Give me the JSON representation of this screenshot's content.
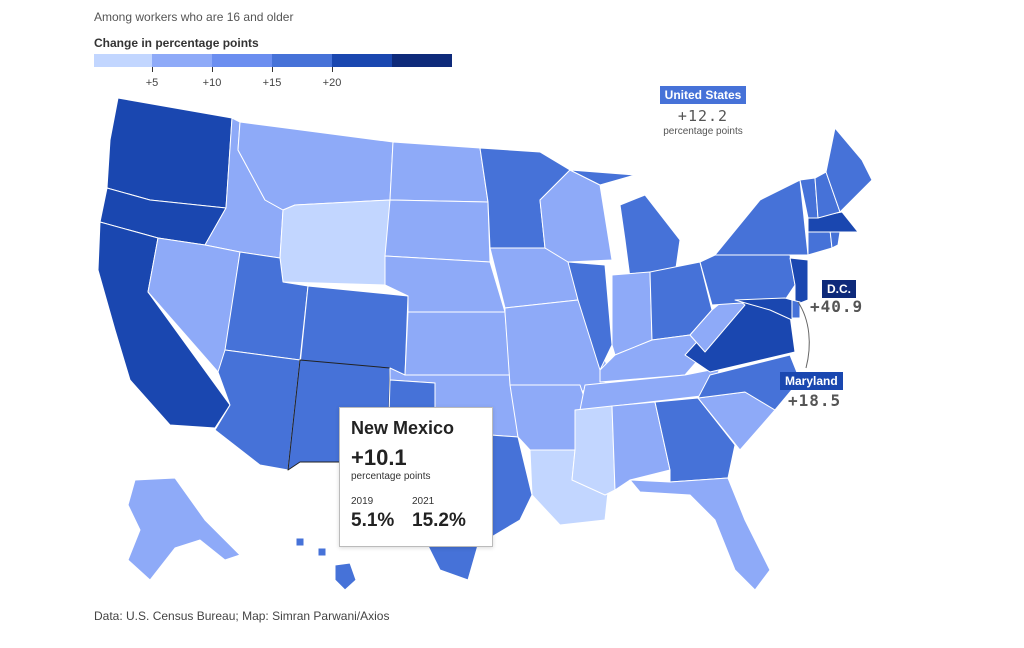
{
  "subtitle": "Among workers who are 16 and older",
  "legend": {
    "title": "Change in percentage points",
    "colors": [
      "#c2d6ff",
      "#8eaaf8",
      "#6b8ef0",
      "#4672d8",
      "#1a47b0",
      "#0e2a7a"
    ],
    "ticks": [
      "+5",
      "+10",
      "+15",
      "+20"
    ]
  },
  "national": {
    "label": "United States",
    "value": "+12.2",
    "unit": "percentage points"
  },
  "callouts": {
    "dc": {
      "label": "D.C.",
      "value": "+40.9"
    },
    "maryland": {
      "label": "Maryland",
      "value": "+18.5"
    }
  },
  "tooltip": {
    "state": "New Mexico",
    "change": "+10.1",
    "unit": "percentage points",
    "year1": "2019",
    "value1": "5.1%",
    "year2": "2021",
    "value2": "15.2%"
  },
  "states": [
    {
      "name": "Washington",
      "color": "#1a47b0"
    },
    {
      "name": "Oregon",
      "color": "#1a47b0"
    },
    {
      "name": "California",
      "color": "#1a47b0"
    },
    {
      "name": "Idaho",
      "color": "#8eaaf8"
    },
    {
      "name": "Nevada",
      "color": "#8eaaf8"
    },
    {
      "name": "Montana",
      "color": "#8eaaf8"
    },
    {
      "name": "Wyoming",
      "color": "#c2d6ff"
    },
    {
      "name": "Utah",
      "color": "#4672d8"
    },
    {
      "name": "Colorado",
      "color": "#4672d8"
    },
    {
      "name": "Arizona",
      "color": "#4672d8"
    },
    {
      "name": "New Mexico",
      "color": "#4672d8"
    },
    {
      "name": "North Dakota",
      "color": "#8eaaf8"
    },
    {
      "name": "South Dakota",
      "color": "#8eaaf8"
    },
    {
      "name": "Nebraska",
      "color": "#8eaaf8"
    },
    {
      "name": "Kansas",
      "color": "#8eaaf8"
    },
    {
      "name": "Oklahoma",
      "color": "#8eaaf8"
    },
    {
      "name": "Texas",
      "color": "#4672d8"
    },
    {
      "name": "Minnesota",
      "color": "#4672d8"
    },
    {
      "name": "Iowa",
      "color": "#8eaaf8"
    },
    {
      "name": "Missouri",
      "color": "#8eaaf8"
    },
    {
      "name": "Arkansas",
      "color": "#8eaaf8"
    },
    {
      "name": "Louisiana",
      "color": "#c2d6ff"
    },
    {
      "name": "Wisconsin",
      "color": "#8eaaf8"
    },
    {
      "name": "Illinois",
      "color": "#4672d8"
    },
    {
      "name": "Michigan",
      "color": "#4672d8"
    },
    {
      "name": "Indiana",
      "color": "#8eaaf8"
    },
    {
      "name": "Ohio",
      "color": "#4672d8"
    },
    {
      "name": "Kentucky",
      "color": "#8eaaf8"
    },
    {
      "name": "Tennessee",
      "color": "#8eaaf8"
    },
    {
      "name": "Mississippi",
      "color": "#c2d6ff"
    },
    {
      "name": "Alabama",
      "color": "#8eaaf8"
    },
    {
      "name": "Georgia",
      "color": "#4672d8"
    },
    {
      "name": "Florida",
      "color": "#8eaaf8"
    },
    {
      "name": "South Carolina",
      "color": "#8eaaf8"
    },
    {
      "name": "North Carolina",
      "color": "#4672d8"
    },
    {
      "name": "Virginia",
      "color": "#1a47b0"
    },
    {
      "name": "West Virginia",
      "color": "#8eaaf8"
    },
    {
      "name": "Pennsylvania",
      "color": "#4672d8"
    },
    {
      "name": "New York",
      "color": "#4672d8"
    },
    {
      "name": "New Jersey",
      "color": "#1a47b0"
    },
    {
      "name": "Delaware",
      "color": "#4672d8"
    },
    {
      "name": "Maryland",
      "color": "#1a47b0"
    },
    {
      "name": "Connecticut",
      "color": "#4672d8"
    },
    {
      "name": "Rhode Island",
      "color": "#4672d8"
    },
    {
      "name": "Massachusetts",
      "color": "#1a47b0"
    },
    {
      "name": "Vermont",
      "color": "#4672d8"
    },
    {
      "name": "New Hampshire",
      "color": "#4672d8"
    },
    {
      "name": "Maine",
      "color": "#4672d8"
    },
    {
      "name": "Alaska",
      "color": "#8eaaf8"
    },
    {
      "name": "Hawaii",
      "color": "#4672d8"
    }
  ],
  "source": "Data: U.S. Census Bureau; Map: Simran Parwani/Axios"
}
